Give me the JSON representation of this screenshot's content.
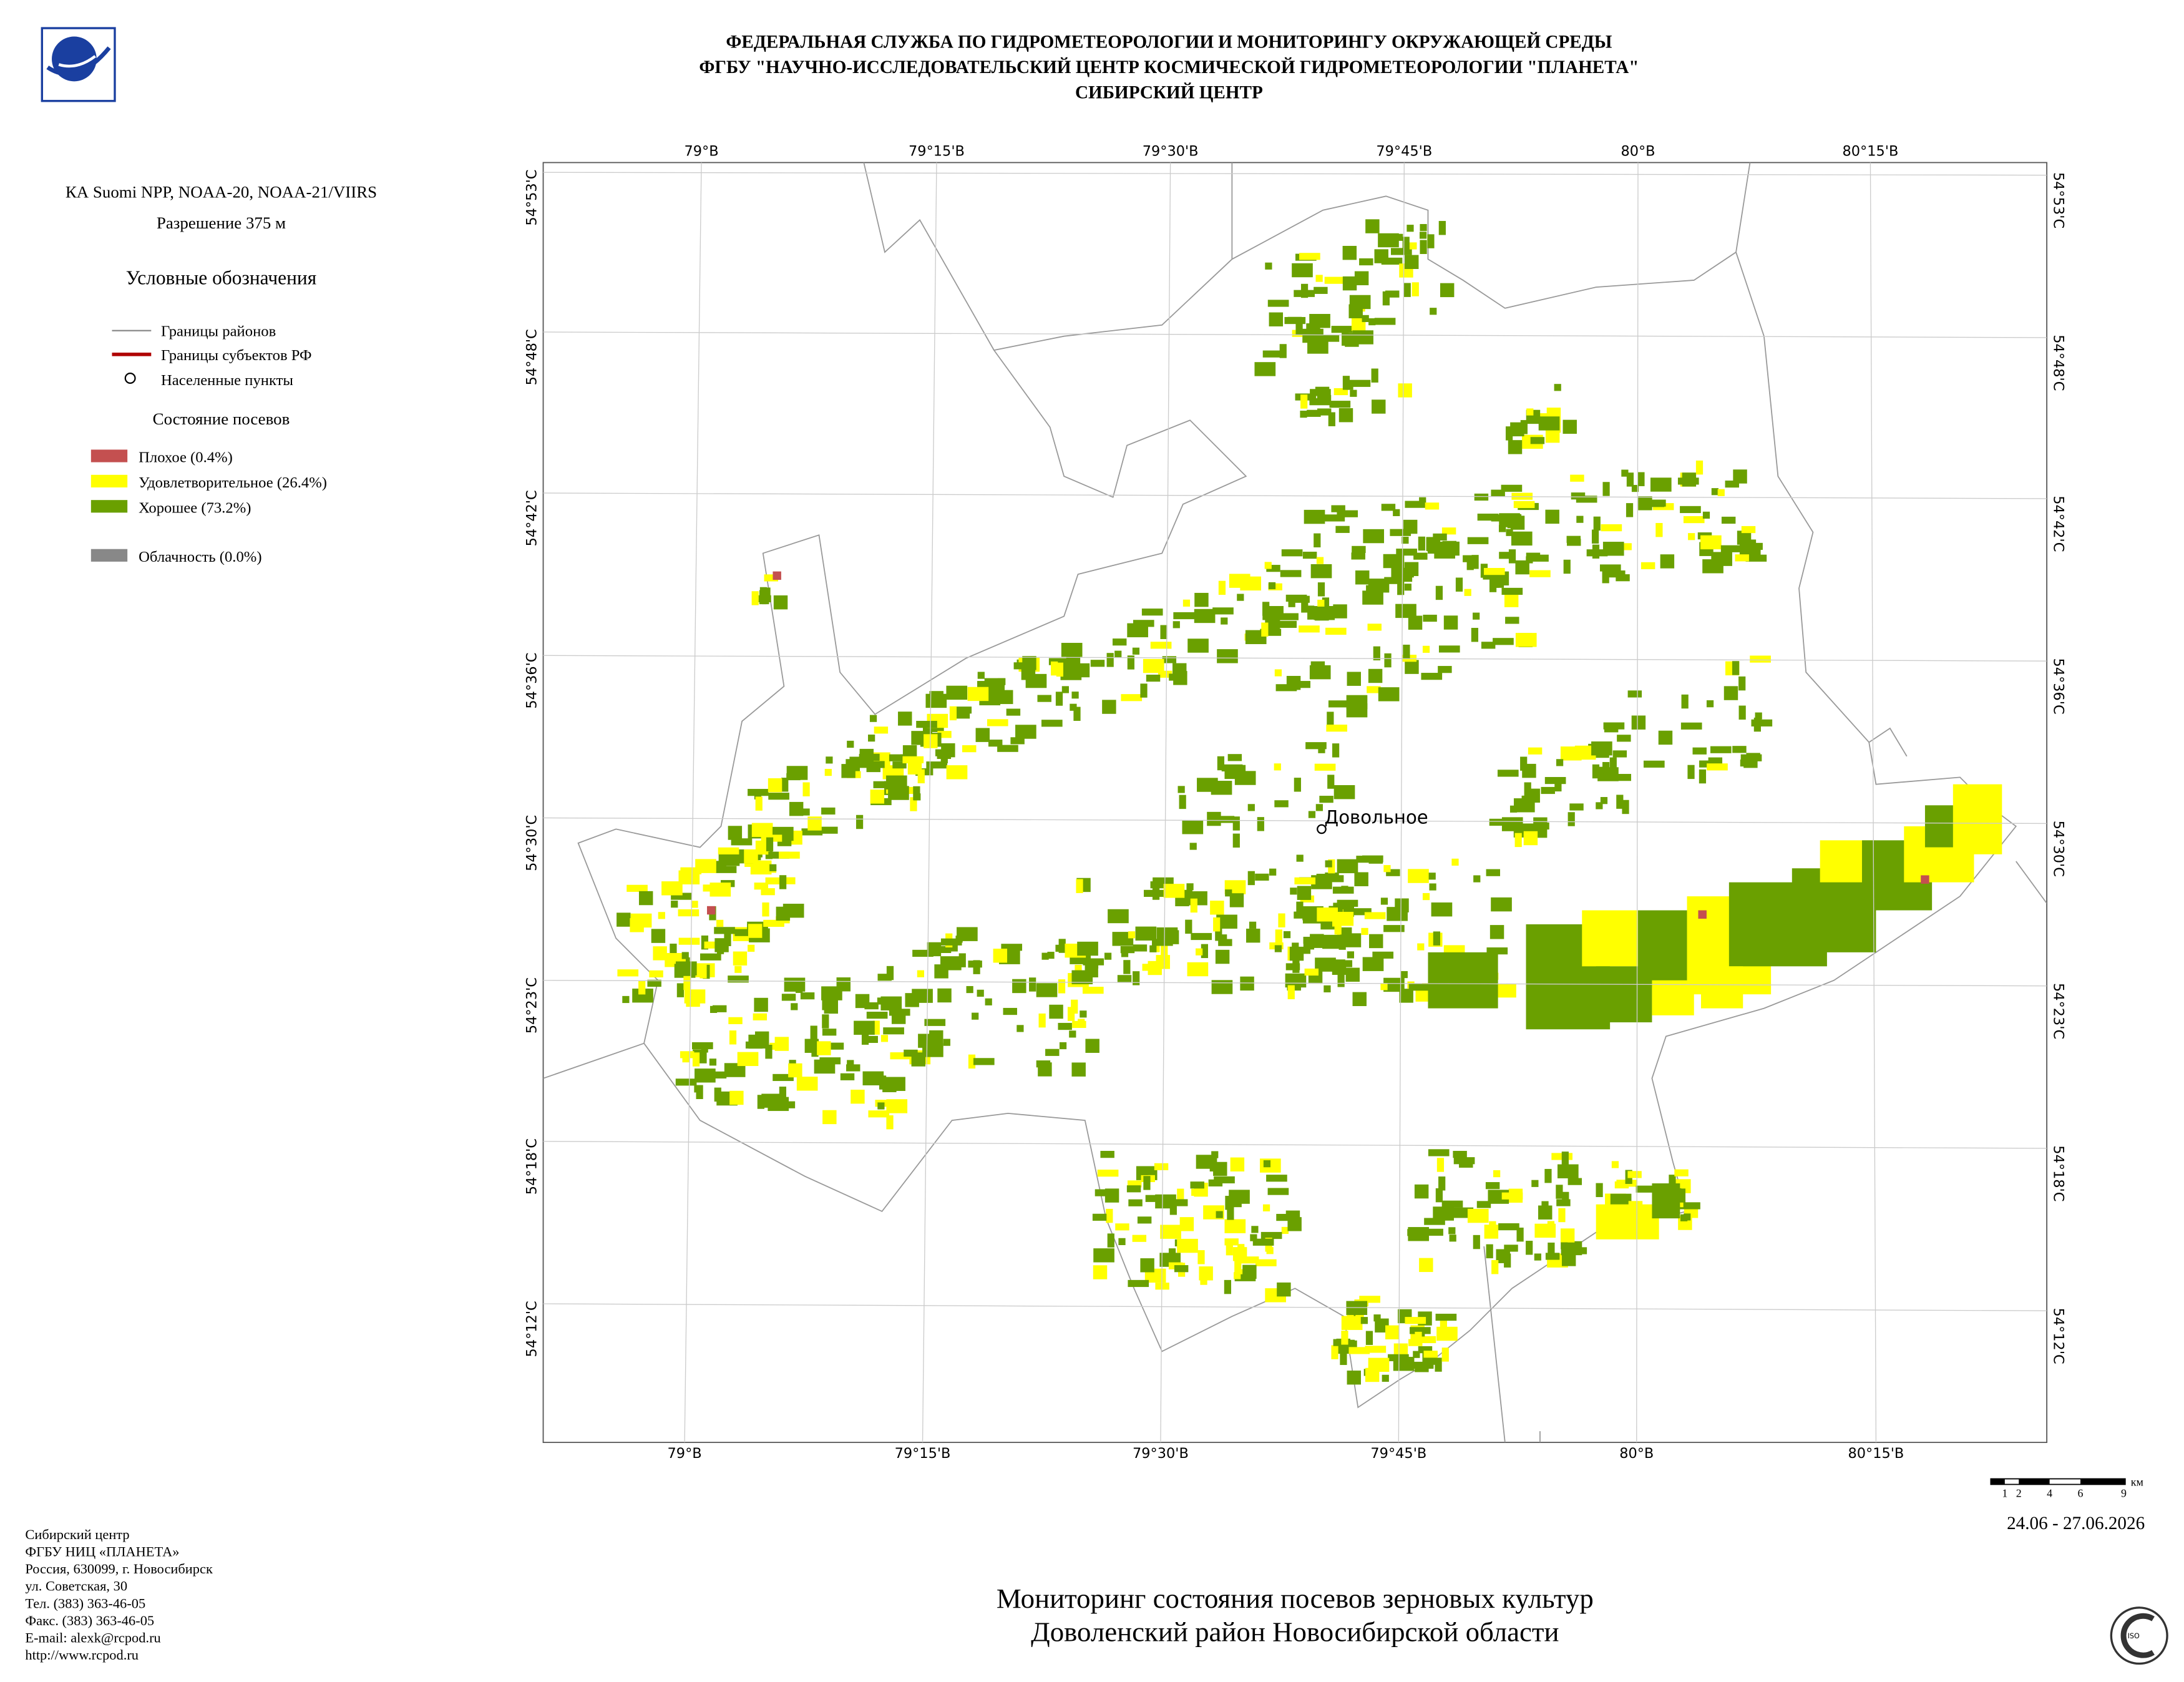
{
  "header": {
    "lines": [
      "ФЕДЕРАЛЬНАЯ СЛУЖБА ПО ГИДРОМЕТЕОРОЛОГИИ И МОНИТОРИНГУ ОКРУЖАЮЩЕЙ СРЕДЫ",
      "ФГБУ \"НАУЧНО-ИССЛЕДОВАТЕЛЬСКИЙ ЦЕНТР КОСМИЧЕСКОЙ ГИДРОМЕТЕОРОЛОГИИ \"ПЛАНЕТА\"",
      "СИБИРСКИЙ ЦЕНТР"
    ]
  },
  "info": {
    "satellite": "КА Suomi NPP, NOAA-20, NOAA-21/VIIRS",
    "resolution": "Разрешение 375 м"
  },
  "legend": {
    "title": "Условные обозначения",
    "boundaries": [
      "Границы районов",
      "Границы субъектов РФ",
      "Населенные пункты"
    ],
    "crops_title": "Состояние посевов",
    "crops": [
      "Плохое (0.4%)",
      "Удовлетворительное (26.4%)",
      "Хорошее (73.2%)"
    ],
    "clouds": "Облачность (0.0%)"
  },
  "map": {
    "lon_labels": [
      "79°В",
      "79°15'В",
      "79°30'В",
      "79°45'В",
      "80°В",
      "80°15'В"
    ],
    "lat_labels": [
      "54°53'С",
      "54°48'С",
      "54°42'С",
      "54°36'С",
      "54°30'С",
      "54°23'С",
      "54°18'С",
      "54°12'С"
    ],
    "settlement": "Довольное"
  },
  "scale": {
    "labels": [
      "1",
      "2",
      "4",
      "6",
      "9"
    ],
    "unit": "км"
  },
  "date": "24.06 - 27.06.2026",
  "footer": {
    "lines": [
      "Сибирский центр",
      "ФГБУ НИЦ «ПЛАНЕТА»",
      "Россия, 630099, г. Новосибирск",
      "ул. Советская, 30",
      "Тел. (383) 363-46-05",
      "Факс. (383) 363-46-05",
      "E-mail: alexk@rcpod.ru",
      "http://www.rcpod.ru"
    ]
  },
  "title": {
    "lines": [
      "Мониторинг состояния посевов зерновых культур",
      "Доволенский район Новосибирской области"
    ]
  }
}
